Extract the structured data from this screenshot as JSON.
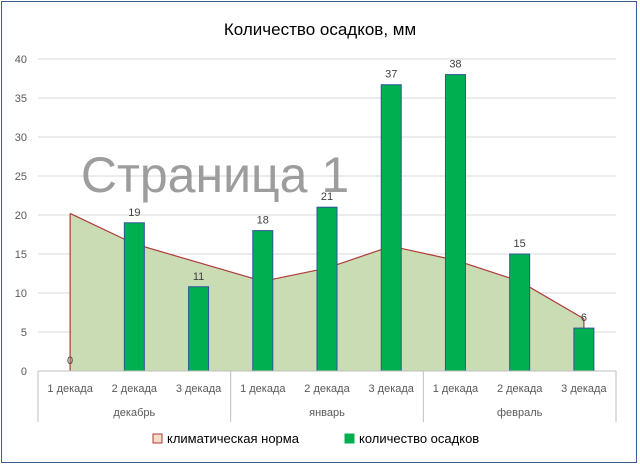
{
  "chart_data": {
    "type": "bar",
    "title": "Количество осадков, мм",
    "watermark": "Страница 1",
    "categories": [
      "1 декада",
      "2 декада",
      "3 декада",
      "1 декада",
      "2 декада",
      "3 декада",
      "1 декада",
      "2 декада",
      "3 декада"
    ],
    "groups": [
      {
        "label": "декабрь",
        "span": 3
      },
      {
        "label": "январь",
        "span": 3
      },
      {
        "label": "февраль",
        "span": 3
      }
    ],
    "ylim": [
      0,
      40
    ],
    "yticks": [
      0,
      5,
      10,
      15,
      20,
      25,
      30,
      35,
      40
    ],
    "series": [
      {
        "name": "климатическая норма",
        "type": "area",
        "values": [
          20.2,
          16.3,
          13.9,
          11.5,
          13.2,
          16.0,
          14.2,
          11.5,
          6.7
        ],
        "fill": "#cadcb3",
        "stroke": "#b03a3a",
        "legend_fill": "#f4dcc8",
        "legend_stroke": "#b03a3a"
      },
      {
        "name": "количество осадков",
        "type": "bar",
        "values": [
          0,
          19,
          10.8,
          18,
          21,
          36.7,
          38,
          15,
          5.5
        ],
        "labels": [
          "0",
          "19",
          "11",
          "18",
          "21",
          "37",
          "38",
          "15",
          "6"
        ],
        "fill": "#00b050",
        "stroke": "#2f5597"
      }
    ],
    "grid": true,
    "legend_position": "bottom"
  }
}
